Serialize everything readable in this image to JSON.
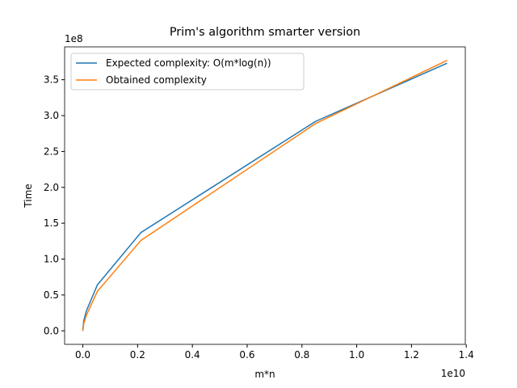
{
  "chart_data": {
    "type": "line",
    "title": "Prim's algorithm smarter version",
    "xlabel": "m*n",
    "ylabel": "Time",
    "x_offset": "1e10",
    "y_offset": "1e8",
    "x": [
      0,
      0.0008,
      0.0033,
      0.0133,
      0.053,
      0.212,
      0.85,
      1.33
    ],
    "series": [
      {
        "name": "Expected complexity: O(m*log(n))",
        "color": "#1f77b4",
        "values": [
          0,
          0.05,
          0.14,
          0.28,
          0.64,
          1.37,
          2.92,
          3.73
        ]
      },
      {
        "name": "Obtained complexity",
        "color": "#ff7f0e",
        "values": [
          0,
          0.02,
          0.1,
          0.22,
          0.55,
          1.26,
          2.89,
          3.77
        ]
      }
    ],
    "xlim": [
      -0.0665,
      1.3965
    ],
    "ylim": [
      -0.1885,
      3.958
    ],
    "xticks": [
      {
        "value": 0,
        "label": "0.0"
      },
      {
        "value": 0.2,
        "label": "0.2"
      },
      {
        "value": 0.4,
        "label": "0.4"
      },
      {
        "value": 0.6,
        "label": "0.6"
      },
      {
        "value": 0.8,
        "label": "0.8"
      },
      {
        "value": 1,
        "label": "1.0"
      },
      {
        "value": 1.2,
        "label": "1.2"
      },
      {
        "value": 1.4,
        "label": "1.4"
      }
    ],
    "yticks": [
      {
        "value": 0,
        "label": "0.0"
      },
      {
        "value": 0.5,
        "label": "0.5"
      },
      {
        "value": 1,
        "label": "1.0"
      },
      {
        "value": 1.5,
        "label": "1.5"
      },
      {
        "value": 2,
        "label": "2.0"
      },
      {
        "value": 2.5,
        "label": "2.5"
      },
      {
        "value": 3,
        "label": "3.0"
      },
      {
        "value": 3.5,
        "label": "3.5"
      }
    ],
    "legend": "upper left",
    "grid": false
  }
}
